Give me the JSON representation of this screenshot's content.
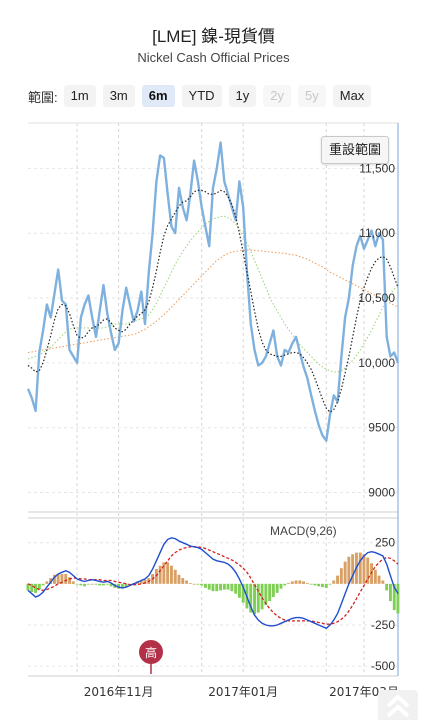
{
  "header": {
    "title": "[LME] 鎳-現貨價",
    "subtitle": "Nickel Cash Official Prices"
  },
  "range": {
    "label": "範圍:",
    "buttons": [
      {
        "label": "1m",
        "state": "normal"
      },
      {
        "label": "3m",
        "state": "normal"
      },
      {
        "label": "6m",
        "state": "active"
      },
      {
        "label": "YTD",
        "state": "normal"
      },
      {
        "label": "1y",
        "state": "normal"
      },
      {
        "label": "2y",
        "state": "disabled"
      },
      {
        "label": "5y",
        "state": "disabled"
      },
      {
        "label": "Max",
        "state": "normal"
      }
    ],
    "reset_label": "重設範圍"
  },
  "chart_data": [
    {
      "type": "line",
      "ylim": [
        8850,
        11850
      ],
      "yticks": [
        "11,500",
        "11,000",
        "10,500",
        "10,000",
        "9500",
        "9000"
      ],
      "ytick_values": [
        11500,
        11000,
        10500,
        10000,
        9500,
        9000
      ],
      "xtick_labels": [
        "2016年11月",
        "2017年01月",
        "2017年03月"
      ],
      "xtick_index": [
        24,
        57,
        89
      ],
      "colors": {
        "price": "#7fb1de",
        "ma_short": "#222222",
        "ma_mid": "#9ed67c",
        "ma_long": "#f0a060"
      },
      "series": [
        {
          "key": "price",
          "values": [
            9800,
            9730,
            9630,
            10080,
            10250,
            10450,
            10350,
            10530,
            10720,
            10480,
            10450,
            10100,
            10050,
            10000,
            10350,
            10450,
            10520,
            10350,
            10200,
            10400,
            10600,
            10380,
            10230,
            10100,
            10150,
            10400,
            10580,
            10450,
            10320,
            10400,
            10550,
            10300,
            10700,
            11000,
            11400,
            11600,
            11580,
            11300,
            11050,
            11000,
            11350,
            11200,
            11100,
            11300,
            11560,
            11400,
            11200,
            11050,
            10900,
            11350,
            11500,
            11700,
            11400,
            11300,
            11200,
            11100,
            11400,
            11200,
            10700,
            10300,
            10100,
            9980,
            10000,
            10050,
            10150,
            10250,
            10050,
            9980,
            10100,
            10080,
            10150,
            10200,
            10080,
            9970,
            9880,
            9750,
            9630,
            9520,
            9440,
            9400,
            9600,
            9750,
            9700,
            10050,
            10350,
            10500,
            10750,
            10900,
            10980,
            10880,
            10950,
            11020,
            10900,
            11000,
            10950,
            10200,
            10050,
            10080,
            10000
          ]
        },
        {
          "key": "ma_short",
          "values": [
            9980,
            9960,
            9930,
            9940,
            10000,
            10100,
            10210,
            10330,
            10420,
            10450,
            10440,
            10380,
            10290,
            10210,
            10190,
            10200,
            10240,
            10270,
            10280,
            10300,
            10330,
            10340,
            10310,
            10270,
            10250,
            10240,
            10260,
            10300,
            10330,
            10360,
            10380,
            10410,
            10470,
            10580,
            10710,
            10850,
            10980,
            11060,
            11110,
            11160,
            11210,
            11240,
            11250,
            11280,
            11320,
            11330,
            11330,
            11320,
            11300,
            11300,
            11310,
            11330,
            11320,
            11280,
            11220,
            11130,
            11000,
            10850,
            10700,
            10550,
            10400,
            10260,
            10160,
            10100,
            10070,
            10060,
            10050,
            10050,
            10060,
            10070,
            10080,
            10080,
            10070,
            10040,
            10000,
            9950,
            9880,
            9800,
            9720,
            9650,
            9620,
            9640,
            9700,
            9800,
            9920,
            10050,
            10200,
            10350,
            10480,
            10580,
            10660,
            10730,
            10780,
            10810,
            10820,
            10800,
            10740,
            10660,
            10580
          ]
        },
        {
          "key": "ma_mid",
          "values": [
            10030,
            10040,
            10050,
            10060,
            10080,
            10100,
            10120,
            10150,
            10180,
            10210,
            10240,
            10260,
            10270,
            10270,
            10270,
            10270,
            10270,
            10270,
            10270,
            10270,
            10270,
            10280,
            10290,
            10300,
            10300,
            10300,
            10300,
            10310,
            10320,
            10330,
            10340,
            10350,
            10370,
            10410,
            10460,
            10520,
            10580,
            10640,
            10700,
            10760,
            10810,
            10860,
            10900,
            10940,
            10980,
            11010,
            11040,
            11070,
            11090,
            11110,
            11120,
            11130,
            11130,
            11120,
            11100,
            11070,
            11030,
            10980,
            10920,
            10860,
            10790,
            10720,
            10650,
            10580,
            10510,
            10450,
            10400,
            10350,
            10300,
            10260,
            10220,
            10180,
            10140,
            10110,
            10080,
            10050,
            10020,
            9990,
            9970,
            9950,
            9940,
            9930,
            9930,
            9940,
            9960,
            9990,
            10020,
            10060,
            10100,
            10150,
            10200,
            10250,
            10310,
            10370,
            10430,
            10480,
            10530,
            10570,
            10590
          ]
        },
        {
          "key": "ma_long",
          "values": [
            10080,
            10085,
            10090,
            10095,
            10100,
            10105,
            10110,
            10115,
            10120,
            10125,
            10130,
            10135,
            10140,
            10145,
            10150,
            10155,
            10160,
            10165,
            10170,
            10175,
            10180,
            10185,
            10190,
            10195,
            10200,
            10205,
            10210,
            10215,
            10220,
            10230,
            10245,
            10260,
            10280,
            10300,
            10320,
            10345,
            10370,
            10400,
            10430,
            10460,
            10490,
            10520,
            10550,
            10580,
            10610,
            10640,
            10670,
            10700,
            10730,
            10760,
            10790,
            10810,
            10830,
            10845,
            10855,
            10860,
            10865,
            10868,
            10870,
            10870,
            10868,
            10865,
            10862,
            10858,
            10855,
            10852,
            10850,
            10848,
            10845,
            10840,
            10835,
            10830,
            10820,
            10810,
            10800,
            10785,
            10770,
            10755,
            10740,
            10720,
            10700,
            10685,
            10670,
            10655,
            10640,
            10625,
            10610,
            10595,
            10580,
            10565,
            10550,
            10535,
            10520,
            10505,
            10490,
            10475,
            10460,
            10445,
            10430
          ]
        }
      ]
    },
    {
      "type": "bar",
      "label": "MACD(9,26)",
      "ylim": [
        -560,
        400
      ],
      "yticks": [
        "250",
        "-250",
        "-500"
      ],
      "ytick_values": [
        250,
        -250,
        -500
      ],
      "colors": {
        "macd": "#1f4fd0",
        "signal": "#d42020",
        "hist_pos": "#d9a066",
        "hist_neg": "#7fcf55"
      },
      "series": [
        {
          "key": "macd",
          "values": [
            -40,
            -60,
            -80,
            -70,
            -50,
            -20,
            10,
            40,
            60,
            70,
            80,
            70,
            50,
            30,
            20,
            15,
            20,
            25,
            20,
            15,
            10,
            15,
            5,
            -10,
            -20,
            -25,
            -20,
            -10,
            0,
            10,
            20,
            30,
            50,
            90,
            140,
            190,
            240,
            270,
            280,
            275,
            260,
            250,
            240,
            230,
            225,
            220,
            210,
            190,
            170,
            150,
            140,
            135,
            130,
            120,
            100,
            70,
            30,
            -20,
            -80,
            -140,
            -190,
            -220,
            -240,
            -250,
            -255,
            -255,
            -250,
            -240,
            -230,
            -220,
            -210,
            -205,
            -205,
            -210,
            -220,
            -230,
            -240,
            -250,
            -260,
            -270,
            -250,
            -220,
            -180,
            -120,
            -60,
            0,
            50,
            100,
            140,
            170,
            190,
            195,
            190,
            180,
            170,
            120,
            50,
            -20,
            -60
          ]
        },
        {
          "key": "signal",
          "values": [
            0,
            -10,
            -25,
            -35,
            -40,
            -35,
            -25,
            -15,
            0,
            10,
            20,
            30,
            35,
            35,
            30,
            30,
            25,
            25,
            25,
            25,
            20,
            20,
            20,
            15,
            10,
            5,
            0,
            -5,
            -5,
            -5,
            0,
            5,
            15,
            30,
            50,
            80,
            110,
            140,
            170,
            190,
            205,
            215,
            220,
            225,
            225,
            225,
            220,
            215,
            205,
            195,
            185,
            175,
            165,
            155,
            145,
            130,
            115,
            95,
            70,
            35,
            -5,
            -45,
            -85,
            -120,
            -150,
            -175,
            -195,
            -210,
            -220,
            -225,
            -225,
            -225,
            -225,
            -225,
            -225,
            -225,
            -230,
            -235,
            -240,
            -245,
            -245,
            -240,
            -230,
            -215,
            -195,
            -165,
            -130,
            -90,
            -50,
            -10,
            30,
            70,
            105,
            130,
            150,
            160,
            155,
            140,
            120
          ]
        },
        {
          "key": "histogram",
          "values": [
            -40,
            -50,
            -55,
            -35,
            -10,
            15,
            35,
            55,
            60,
            60,
            60,
            40,
            15,
            -5,
            -10,
            -15,
            -5,
            0,
            -5,
            -10,
            -10,
            -5,
            -15,
            -25,
            -30,
            -30,
            -20,
            -5,
            5,
            15,
            20,
            25,
            35,
            60,
            90,
            110,
            130,
            130,
            110,
            85,
            55,
            35,
            20,
            5,
            0,
            -5,
            -10,
            -25,
            -35,
            -45,
            -45,
            -40,
            -35,
            -35,
            -45,
            -60,
            -85,
            -115,
            -150,
            -175,
            -185,
            -175,
            -155,
            -130,
            -105,
            -80,
            -55,
            -30,
            -10,
            5,
            15,
            20,
            20,
            15,
            5,
            -5,
            -10,
            -15,
            -20,
            -25,
            -5,
            20,
            50,
            95,
            135,
            165,
            180,
            190,
            190,
            180,
            160,
            125,
            85,
            50,
            20,
            -40,
            -105,
            -160,
            -180
          ]
        }
      ]
    }
  ],
  "marker": {
    "label": "高"
  }
}
